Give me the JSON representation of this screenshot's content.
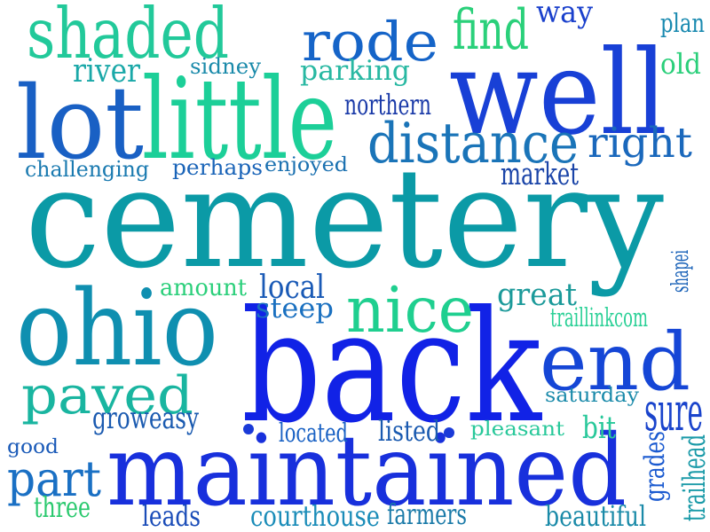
{
  "words": [
    {
      "id": "cemetery",
      "text": "cemetery",
      "color": "#0b9aa6",
      "vertical": false
    },
    {
      "id": "back",
      "text": "back",
      "color": "#1122e6",
      "vertical": false
    },
    {
      "id": "maintained",
      "text": "maintained",
      "color": "#1830dc",
      "vertical": false
    },
    {
      "id": "well",
      "text": "well",
      "color": "#1840d6",
      "vertical": false
    },
    {
      "id": "little",
      "text": "little",
      "color": "#1ccf98",
      "vertical": false
    },
    {
      "id": "ohio",
      "text": "ohio",
      "color": "#0f8fb0",
      "vertical": false
    },
    {
      "id": "lot",
      "text": "lot",
      "color": "#1960c4",
      "vertical": false
    },
    {
      "id": "end",
      "text": "end",
      "color": "#1546d6",
      "vertical": false
    },
    {
      "id": "shaded",
      "text": "shaded",
      "color": "#22c99a",
      "vertical": false
    },
    {
      "id": "rode",
      "text": "rode",
      "color": "#1564c8",
      "vertical": false
    },
    {
      "id": "nice",
      "text": "nice",
      "color": "#1fcf8f",
      "vertical": false
    },
    {
      "id": "paved",
      "text": "paved",
      "color": "#19b5a0",
      "vertical": false
    },
    {
      "id": "distance",
      "text": "distance",
      "color": "#1a74b8",
      "vertical": false
    },
    {
      "id": "right",
      "text": "right",
      "color": "#1a68bc",
      "vertical": false
    },
    {
      "id": "find",
      "text": "find",
      "color": "#2ad07a",
      "vertical": false
    },
    {
      "id": "part",
      "text": "part",
      "color": "#1a70c4",
      "vertical": false
    },
    {
      "id": "parking",
      "text": "parking",
      "color": "#28b8a2",
      "vertical": false
    },
    {
      "id": "way",
      "text": "way",
      "color": "#1a40cc",
      "vertical": false
    },
    {
      "id": "local",
      "text": "local",
      "color": "#1a5ab6",
      "vertical": false
    },
    {
      "id": "great",
      "text": "great",
      "color": "#1c9a9a",
      "vertical": false
    },
    {
      "id": "steep",
      "text": "steep",
      "color": "#1a70c0",
      "vertical": false
    },
    {
      "id": "sure",
      "text": "sure",
      "color": "#1a44cc",
      "vertical": false
    },
    {
      "id": "grades",
      "text": "grades",
      "color": "#1a5ad0",
      "vertical": true
    },
    {
      "id": "river",
      "text": "river",
      "color": "#1aa8a8",
      "vertical": false
    },
    {
      "id": "sidney",
      "text": "sidney",
      "color": "#1a8aaa",
      "vertical": false
    },
    {
      "id": "northern",
      "text": "northern",
      "color": "#1a3aa8",
      "vertical": false
    },
    {
      "id": "challenging",
      "text": "challenging",
      "color": "#1a7ab0",
      "vertical": false
    },
    {
      "id": "perhaps",
      "text": "perhaps",
      "color": "#1a64b8",
      "vertical": false
    },
    {
      "id": "enjoyed",
      "text": "enjoyed",
      "color": "#1a70b0",
      "vertical": false
    },
    {
      "id": "market",
      "text": "market",
      "color": "#1a44a8",
      "vertical": false
    },
    {
      "id": "plan",
      "text": "plan",
      "color": "#1a8ab0",
      "vertical": false
    },
    {
      "id": "old",
      "text": "old",
      "color": "#2acf7a",
      "vertical": false
    },
    {
      "id": "amount",
      "text": "amount",
      "color": "#2acf7a",
      "vertical": false
    },
    {
      "id": "shapei",
      "text": "shapei",
      "color": "#1a62b8",
      "vertical": true
    },
    {
      "id": "traillinkcom",
      "text": "traillinkcom",
      "color": "#2ad096",
      "vertical": false
    },
    {
      "id": "saturday",
      "text": "saturday",
      "color": "#1a8aaa",
      "vertical": false
    },
    {
      "id": "groweasy",
      "text": "groweasy",
      "color": "#1a5ab0",
      "vertical": false
    },
    {
      "id": "located",
      "text": "located",
      "color": "#1a62c4",
      "vertical": false
    },
    {
      "id": "listed",
      "text": "listed",
      "color": "#1a5ab0",
      "vertical": false
    },
    {
      "id": "pleasant",
      "text": "pleasant",
      "color": "#28c89a",
      "vertical": false
    },
    {
      "id": "bit",
      "text": "bit",
      "color": "#28c89a",
      "vertical": false
    },
    {
      "id": "good",
      "text": "good",
      "color": "#1a5ab8",
      "vertical": false
    },
    {
      "id": "three",
      "text": "three",
      "color": "#2ac96e",
      "vertical": false
    },
    {
      "id": "leads",
      "text": "leads",
      "color": "#1a4cb8",
      "vertical": false
    },
    {
      "id": "courthouse",
      "text": "courthouse",
      "color": "#1a8cb8",
      "vertical": false
    },
    {
      "id": "farmers",
      "text": "farmers",
      "color": "#1a7aa8",
      "vertical": false
    },
    {
      "id": "beautiful",
      "text": "beautiful",
      "color": "#1a8aa8",
      "vertical": false
    },
    {
      "id": "trailhead",
      "text": "trailhead",
      "color": "#1a9aa8",
      "vertical": true
    }
  ],
  "dots": [
    {
      "id": "dot-1",
      "color": "#1a3ad8"
    },
    {
      "id": "dot-2",
      "color": "#1a3ad8"
    }
  ]
}
